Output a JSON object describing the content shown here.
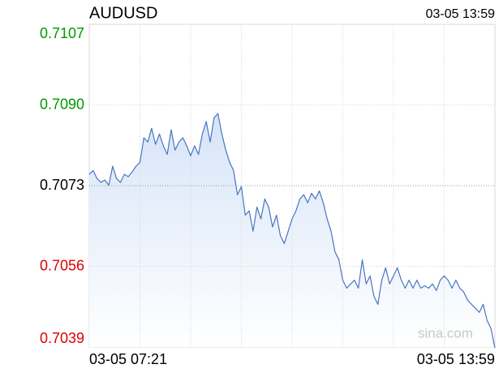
{
  "chart_data": {
    "type": "line",
    "title": "AUDUSD",
    "timestamp": "03-05 13:59",
    "watermark": "sina.com",
    "categories": [
      "03-05 07:21",
      null,
      null,
      null,
      null,
      null,
      null,
      null,
      null,
      null,
      null,
      null,
      null,
      null,
      null,
      null,
      null,
      null,
      null,
      null,
      null,
      null,
      null,
      null,
      null,
      null,
      null,
      null,
      null,
      null,
      null,
      null,
      null,
      null,
      null,
      null,
      null,
      null,
      null,
      null,
      null,
      null,
      null,
      null,
      null,
      null,
      null,
      null,
      null,
      null,
      null,
      null,
      null,
      null,
      null,
      null,
      null,
      null,
      null,
      null,
      null,
      null,
      null,
      null,
      null,
      null,
      null,
      null,
      null,
      null,
      null,
      null,
      null,
      null,
      null,
      null,
      null,
      null,
      null,
      null,
      null,
      null,
      null,
      null,
      null,
      null,
      null,
      null,
      null,
      null,
      null,
      null,
      null,
      null,
      null,
      null,
      null,
      null,
      null,
      null,
      null,
      null,
      null,
      null,
      "03-05 13:59"
    ],
    "series": [
      {
        "color": "#4a74c0",
        "values": [
          0.70754,
          0.70762,
          0.70745,
          0.70737,
          0.70742,
          0.70731,
          0.70771,
          0.70745,
          0.70737,
          0.70754,
          0.70749,
          0.70759,
          0.70771,
          0.70779,
          0.70831,
          0.70822,
          0.70851,
          0.70817,
          0.70839,
          0.70814,
          0.70796,
          0.70848,
          0.70805,
          0.70822,
          0.70831,
          0.70814,
          0.70793,
          0.70814,
          0.70796,
          0.70839,
          0.70865,
          0.70822,
          0.70873,
          0.70882,
          0.70839,
          0.70805,
          0.70779,
          0.70762,
          0.70711,
          0.70728,
          0.70668,
          0.70677,
          0.70634,
          0.70685,
          0.7066,
          0.70702,
          0.70685,
          0.70643,
          0.70668,
          0.70625,
          0.70608,
          0.70634,
          0.7066,
          0.70677,
          0.70702,
          0.70711,
          0.70694,
          0.70714,
          0.70702,
          0.70719,
          0.70694,
          0.7066,
          0.70634,
          0.70591,
          0.70574,
          0.70531,
          0.70514,
          0.70523,
          0.70531,
          0.70514,
          0.70574,
          0.70523,
          0.7054,
          0.70497,
          0.7048,
          0.70531,
          0.70557,
          0.70523,
          0.7054,
          0.70557,
          0.70531,
          0.70514,
          0.70531,
          0.70514,
          0.70531,
          0.70514,
          0.70519,
          0.70514,
          0.70523,
          0.70509,
          0.70531,
          0.7054,
          0.70531,
          0.70514,
          0.70531,
          0.70514,
          0.70506,
          0.70489,
          0.7048,
          0.70472,
          0.70463,
          0.7048,
          0.70446,
          0.70429,
          0.70388
        ]
      }
    ],
    "ylim": [
      0.7039,
      0.7107
    ],
    "yticks": [
      0.7107,
      {
        "value": 0.709,
        "label": "0.7090"
      },
      0.7073,
      0.7056,
      0.7039
    ],
    "base": 0.7073,
    "up_color": "#009900",
    "down_color": "#dd0000",
    "grid": true
  }
}
